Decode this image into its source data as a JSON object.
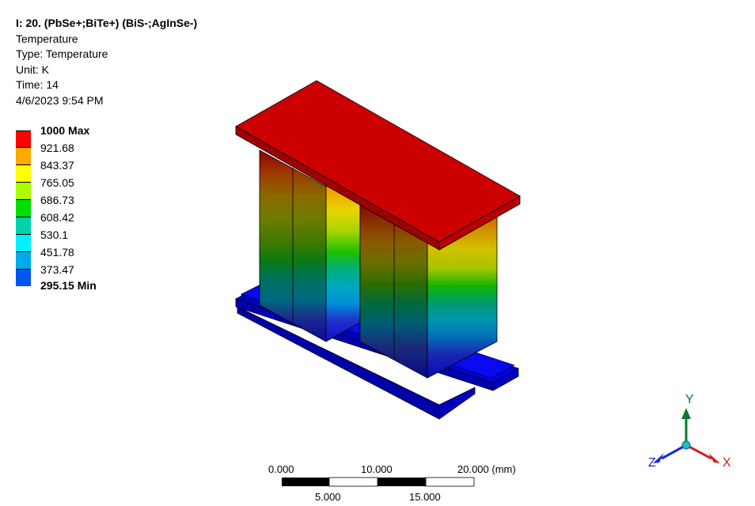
{
  "info": {
    "title": "I: 20. (PbSe+;BiTe+) (BiS-;AgInSe-)",
    "result": "Temperature",
    "type": "Type: Temperature",
    "unit": "Unit: K",
    "time": "Time: 14",
    "timestamp": "4/6/2023 9:54 PM"
  },
  "legend": {
    "labels": [
      "1000 Max",
      "921.68",
      "843.37",
      "765.05",
      "686.73",
      "608.42",
      "530.1",
      "451.78",
      "373.47",
      "295.15 Min"
    ],
    "colors": [
      "#ff0000",
      "#ffaa00",
      "#ffff00",
      "#aaff00",
      "#00e000",
      "#00d2aa",
      "#00f0ff",
      "#00aaee",
      "#0055ee",
      "#0000ff"
    ]
  },
  "scale": {
    "top_labels": [
      "0.000",
      "10.000",
      "20.000 (mm)"
    ],
    "bottom_labels": [
      "5.000",
      "15.000"
    ]
  },
  "triad": {
    "x_label": "X",
    "y_label": "Y",
    "z_label": "Z"
  }
}
